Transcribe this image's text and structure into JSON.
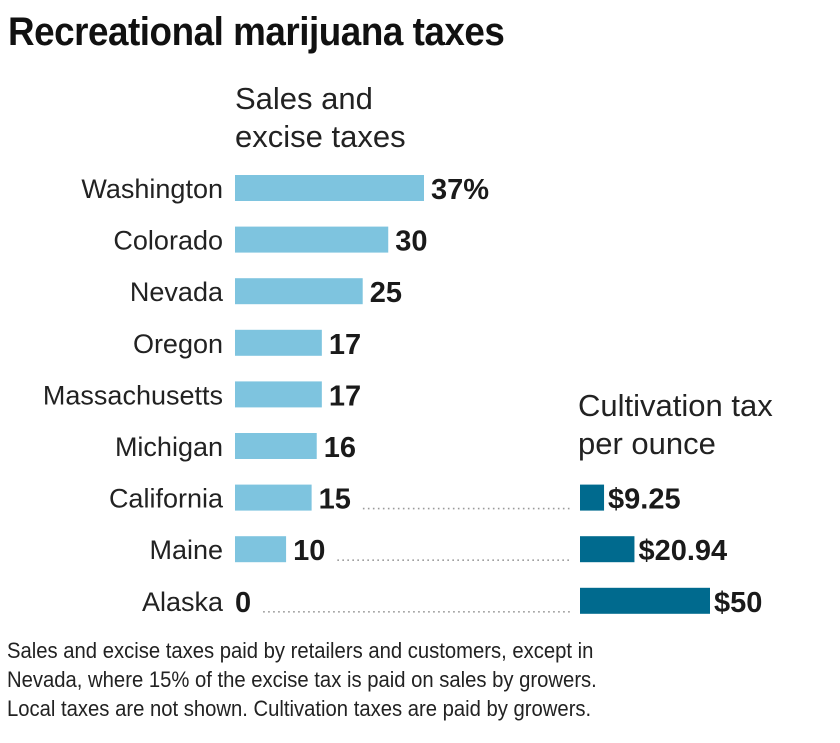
{
  "title": "Recreational marijuana taxes",
  "colors": {
    "sales_bar": "#7ec4df",
    "cultivation_bar": "#006a8e",
    "leader_dots": "#9a9a9a"
  },
  "chart_data": [
    {
      "type": "bar",
      "orientation": "horizontal",
      "title": "Sales and excise taxes",
      "title_lines": [
        "Sales and",
        "excise taxes"
      ],
      "categories": [
        "Washington",
        "Colorado",
        "Nevada",
        "Oregon",
        "Massachusetts",
        "Michigan",
        "California",
        "Maine",
        "Alaska"
      ],
      "values": [
        37,
        30,
        25,
        17,
        17,
        16,
        15,
        10,
        0
      ],
      "value_labels": [
        "37%",
        "30",
        "25",
        "17",
        "17",
        "16",
        "15",
        "10",
        "0"
      ],
      "unit": "%",
      "xlim": [
        0,
        37
      ],
      "grid": false,
      "xlabel": "",
      "ylabel": ""
    },
    {
      "type": "bar",
      "orientation": "horizontal",
      "title": "Cultivation tax per ounce",
      "title_lines": [
        "Cultivation tax",
        "per ounce"
      ],
      "categories": [
        "California",
        "Maine",
        "Alaska"
      ],
      "values": [
        9.25,
        20.94,
        50
      ],
      "value_labels": [
        "$9.25",
        "$20.94",
        "$50"
      ],
      "unit": "$",
      "xlim": [
        0,
        50
      ],
      "grid": false,
      "xlabel": "",
      "ylabel": ""
    }
  ],
  "footnote": [
    "Sales and excise taxes paid by retailers and customers, except in",
    "Nevada, where 15% of the excise tax is paid on sales by growers.",
    "Local taxes are not shown. Cultivation taxes are paid by growers."
  ]
}
